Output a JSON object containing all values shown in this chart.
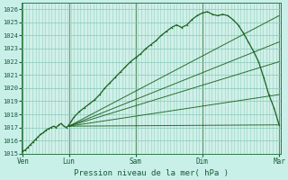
{
  "title": "Pression niveau de la mer( hPa )",
  "bg_color": "#c8f0e8",
  "plot_bg_color": "#d0f0e8",
  "grid_color": "#88c8b8",
  "line_color": "#1a6020",
  "ylim": [
    1015,
    1026.5
  ],
  "yticks": [
    1015,
    1016,
    1017,
    1018,
    1019,
    1020,
    1021,
    1022,
    1023,
    1024,
    1025,
    1026
  ],
  "xtick_labels": [
    "Ven",
    "Lun",
    "Sam",
    "Dim",
    "Mar"
  ],
  "xtick_positions": [
    0.0,
    0.18,
    0.44,
    0.7,
    1.0
  ],
  "figsize": [
    3.2,
    2.0
  ],
  "dpi": 100,
  "main_line_x": [
    0.0,
    0.01,
    0.02,
    0.03,
    0.04,
    0.05,
    0.06,
    0.07,
    0.08,
    0.09,
    0.1,
    0.11,
    0.12,
    0.13,
    0.14,
    0.15,
    0.16,
    0.17,
    0.18,
    0.19,
    0.2,
    0.22,
    0.24,
    0.26,
    0.28,
    0.3,
    0.32,
    0.34,
    0.36,
    0.38,
    0.4,
    0.42,
    0.44,
    0.46,
    0.48,
    0.5,
    0.52,
    0.54,
    0.56,
    0.58,
    0.6,
    0.62,
    0.64,
    0.66,
    0.68,
    0.7,
    0.72,
    0.74,
    0.76,
    0.78,
    0.8,
    0.82,
    0.84,
    0.86,
    0.88,
    0.9,
    0.92,
    0.94,
    0.96,
    0.98,
    1.0
  ],
  "main_line_y": [
    1015.2,
    1015.3,
    1015.5,
    1015.7,
    1015.9,
    1016.1,
    1016.3,
    1016.5,
    1016.6,
    1016.8,
    1016.9,
    1017.0,
    1017.1,
    1017.0,
    1017.2,
    1017.3,
    1017.1,
    1017.0,
    1017.2,
    1017.5,
    1017.8,
    1018.2,
    1018.5,
    1018.8,
    1019.1,
    1019.5,
    1020.0,
    1020.4,
    1020.8,
    1021.2,
    1021.6,
    1022.0,
    1022.3,
    1022.6,
    1023.0,
    1023.3,
    1023.6,
    1024.0,
    1024.3,
    1024.6,
    1024.8,
    1024.6,
    1024.8,
    1025.2,
    1025.5,
    1025.7,
    1025.8,
    1025.6,
    1025.5,
    1025.6,
    1025.5,
    1025.2,
    1024.8,
    1024.2,
    1023.5,
    1022.8,
    1022.0,
    1020.8,
    1019.5,
    1018.5,
    1017.2
  ],
  "forecast_lines": [
    {
      "x": [
        0.18,
        1.0
      ],
      "y": [
        1017.1,
        1017.2
      ]
    },
    {
      "x": [
        0.18,
        1.0
      ],
      "y": [
        1017.1,
        1019.5
      ]
    },
    {
      "x": [
        0.18,
        1.0
      ],
      "y": [
        1017.1,
        1022.0
      ]
    },
    {
      "x": [
        0.18,
        1.0
      ],
      "y": [
        1017.1,
        1023.5
      ]
    },
    {
      "x": [
        0.18,
        1.0
      ],
      "y": [
        1017.1,
        1025.5
      ]
    }
  ],
  "vlines_x": [
    0.0,
    0.18,
    0.44,
    0.7,
    1.0
  ],
  "vlines_color": "#2d8b57"
}
